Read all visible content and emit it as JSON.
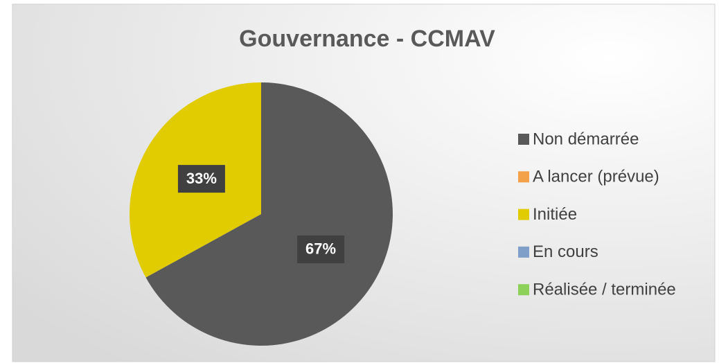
{
  "chart_data": {
    "type": "pie",
    "title": "Gouvernance - CCMAV",
    "categories": [
      "Non démarrée",
      "A lancer (prévue)",
      "Initiée",
      "En cours",
      "Réalisée / terminée"
    ],
    "values": [
      67,
      0,
      33,
      0,
      0
    ],
    "value_labels": [
      "67%",
      null,
      "33%",
      null,
      null
    ],
    "colors": [
      "#595959",
      "#f4a24a",
      "#e0cc00",
      "#7f9fc8",
      "#8dd05a"
    ],
    "legend": "right"
  }
}
